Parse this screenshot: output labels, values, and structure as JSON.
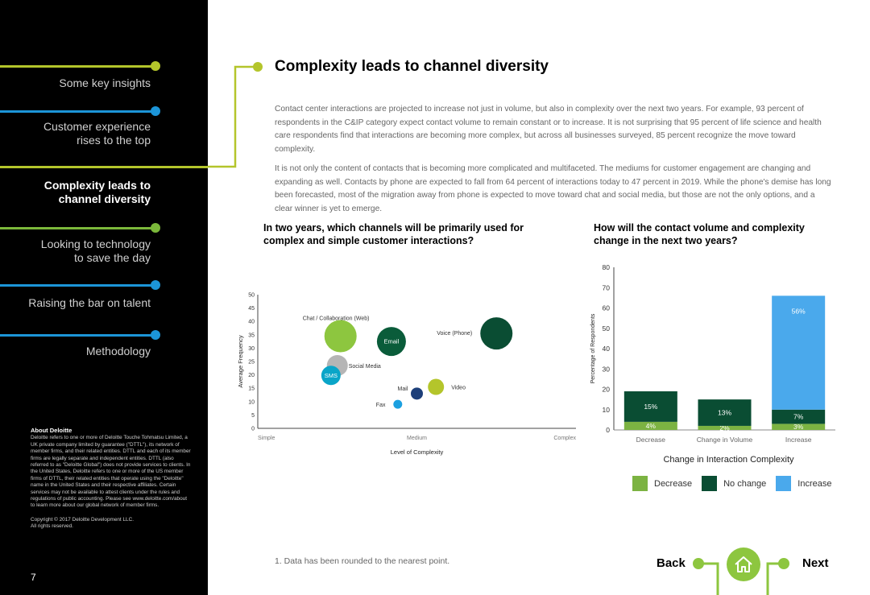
{
  "sidebar": {
    "items": [
      {
        "label": "Some key insights",
        "color": "#b4c52b",
        "active": false
      },
      {
        "label": "Customer experience\nrises to the top",
        "color": "#1c95d8",
        "active": false
      },
      {
        "label": "Complexity leads to\nchannel diversity",
        "color": "#b4c52b",
        "active": true
      },
      {
        "label": "Looking to technology\nto save the day",
        "color": "#7bb83a",
        "active": false
      },
      {
        "label": "Raising the bar on talent",
        "color": "#1c95d8",
        "active": false
      },
      {
        "label": "Methodology",
        "color": "#1c95d8",
        "active": false
      }
    ],
    "about_title": "About Deloitte",
    "about_text": "Deloitte refers to one or more of Deloitte Touche Tohmatsu Limited, a UK private company limited by guarantee (\"DTTL\"), its network of member firms, and their related entities. DTTL and each of its member firms are legally separate and independent entities. DTTL (also referred to as \"Deloitte Global\") does not provide services to clients. In the United States, Deloitte refers to one or more of the US member firms of DTTL, their related entities that operate using the \"Deloitte\" name in the United States and their respective affiliates. Certain services may not be available to attest clients under the rules and regulations of public accounting. Please see www.deloitte.com/about to learn more about our global network of member firms.",
    "copyright": "Copyright © 2017 Deloitte Development LLC.",
    "rights": "All rights reserved.",
    "page_number": "7"
  },
  "main": {
    "title": "Complexity leads to channel diversity",
    "paragraph1": "Contact center interactions are projected to increase not just in volume, but also in complexity over the next two years. For example, 93 percent of respondents in the C&IP category expect contact volume to remain constant or to increase.  It is not surprising that 95 percent of life science and health care respondents find that interactions are becoming more complex, but across all businesses surveyed, 85 percent recognize the move toward complexity.",
    "paragraph2": "It is not only the content of contacts that is becoming more complicated and multifaceted. The mediums for customer engagement are changing and expanding as well. Contacts by phone are expected to fall from 64 percent of interactions today to 47 percent in 2019. While the phone's demise has long been forecasted, most of the migration away from phone is expected to move toward chat and social media, but those are not the only options, and a clear winner is yet to emerge.",
    "footnote": "1. Data has been rounded to the nearest point."
  },
  "navigation": {
    "back_label": "Back",
    "next_label": "Next",
    "home_icon": "home-icon"
  },
  "colors": {
    "accent_green": "#b4c52b",
    "accent_blue": "#1c95d8",
    "decrease": "#7cb342",
    "no_change": "#0a4d33",
    "increase": "#4aa9ec"
  },
  "chart_data": [
    {
      "type": "scatter",
      "title": "In two years, which channels will be primarily used for complex and simple customer interactions?",
      "xlabel": "Level of Complexity",
      "ylabel": "Average Frequency",
      "x_tick_labels": [
        "Simple",
        "Medium",
        "Complex"
      ],
      "xlim": [
        0,
        1
      ],
      "ylim": [
        0,
        50
      ],
      "yticks": [
        0,
        5,
        10,
        15,
        20,
        25,
        30,
        35,
        40,
        45,
        50
      ],
      "points": [
        {
          "label": "Chat / Collaboration (Web)",
          "x": 0.26,
          "y": 34.5,
          "size": 20,
          "color": "#8dc63f",
          "label_inside": false
        },
        {
          "label": "Email",
          "x": 0.42,
          "y": 32.5,
          "size": 18,
          "color": "#0a5c3a",
          "label_inside": true
        },
        {
          "label": "Voice (Phone)",
          "x": 0.75,
          "y": 35.5,
          "size": 20,
          "color": "#0a4d33",
          "label_inside": false
        },
        {
          "label": "Social Media",
          "x": 0.25,
          "y": 23.5,
          "size": 13,
          "color": "#b5b5b5",
          "label_inside": false
        },
        {
          "label": "SMS",
          "x": 0.23,
          "y": 19.8,
          "size": 12,
          "color": "#0aa5c8",
          "label_inside": true
        },
        {
          "label": "Video",
          "x": 0.56,
          "y": 15.5,
          "size": 10,
          "color": "#b4c52b",
          "label_inside": false
        },
        {
          "label": "Mail",
          "x": 0.5,
          "y": 13,
          "size": 7.5,
          "color": "#1d3f7a",
          "label_inside": false
        },
        {
          "label": "Fax",
          "x": 0.44,
          "y": 9,
          "size": 5.5,
          "color": "#1ca0e0",
          "label_inside": false
        }
      ]
    },
    {
      "type": "bar",
      "stacked": true,
      "title": "How will the contact volume and complexity change in the next two years?",
      "xlabel": "Change in  Interaction Complexity",
      "ylabel": "Percentage of Respondents",
      "categories": [
        "Decrease",
        "Change in Volume",
        "Increase"
      ],
      "ylim": [
        0,
        80
      ],
      "yticks": [
        0,
        10,
        20,
        30,
        40,
        50,
        60,
        70,
        80
      ],
      "series": [
        {
          "name": "Decrease",
          "color": "#7cb342",
          "values": [
            4,
            2,
            3
          ],
          "labels": [
            "4%",
            "2%",
            "3%"
          ]
        },
        {
          "name": "No change",
          "color": "#0a4d33",
          "values": [
            15,
            13,
            7
          ],
          "labels": [
            "15%",
            "13%",
            "7%"
          ]
        },
        {
          "name": "Increase",
          "color": "#4aa9ec",
          "values": [
            0,
            0,
            56
          ],
          "labels": [
            "",
            "",
            "56%"
          ]
        }
      ],
      "legend": "bottom"
    }
  ]
}
